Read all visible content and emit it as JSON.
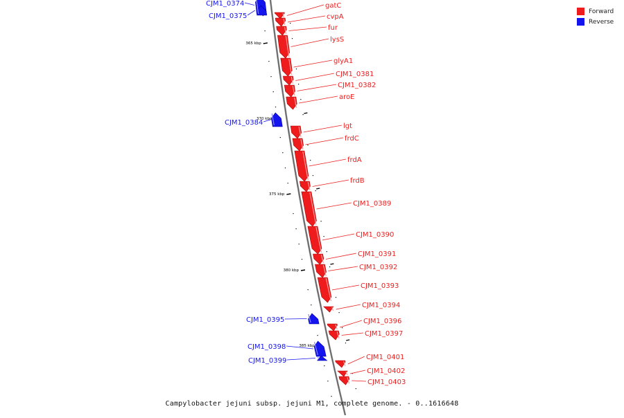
{
  "colors": {
    "forward": "#ee1c1c",
    "reverse": "#1414ee",
    "backbone": "#888888",
    "tick": "#000000"
  },
  "legend": [
    {
      "label": "Forward",
      "color": "#ee1c1c"
    },
    {
      "label": "Reverse",
      "color": "#1414ee"
    }
  ],
  "caption": "Campylobacter jejuni subsp. jejuni M1, complete genome. - 0..1616648",
  "tick_labels": [
    "365 kbp",
    "370 kbp",
    "375 kbp",
    "380 kbp",
    "385 kbp"
  ],
  "genes": [
    {
      "name": "CJM1_0374",
      "strand": "reverse"
    },
    {
      "name": "CJM1_0375",
      "strand": "reverse"
    },
    {
      "name": "gatC",
      "strand": "forward"
    },
    {
      "name": "cvpA",
      "strand": "forward"
    },
    {
      "name": "fur",
      "strand": "forward"
    },
    {
      "name": "lysS",
      "strand": "forward"
    },
    {
      "name": "glyA1",
      "strand": "forward"
    },
    {
      "name": "CJM1_0381",
      "strand": "forward"
    },
    {
      "name": "CJM1_0382",
      "strand": "forward"
    },
    {
      "name": "aroE",
      "strand": "forward"
    },
    {
      "name": "CJM1_0384",
      "strand": "reverse"
    },
    {
      "name": "lgt",
      "strand": "forward"
    },
    {
      "name": "frdC",
      "strand": "forward"
    },
    {
      "name": "frdA",
      "strand": "forward"
    },
    {
      "name": "frdB",
      "strand": "forward"
    },
    {
      "name": "CJM1_0389",
      "strand": "forward"
    },
    {
      "name": "CJM1_0390",
      "strand": "forward"
    },
    {
      "name": "CJM1_0391",
      "strand": "forward"
    },
    {
      "name": "CJM1_0392",
      "strand": "forward"
    },
    {
      "name": "CJM1_0393",
      "strand": "forward"
    },
    {
      "name": "CJM1_0394",
      "strand": "forward"
    },
    {
      "name": "CJM1_0395",
      "strand": "reverse"
    },
    {
      "name": "CJM1_0396",
      "strand": "forward"
    },
    {
      "name": "CJM1_0397",
      "strand": "forward"
    },
    {
      "name": "CJM1_0398",
      "strand": "reverse"
    },
    {
      "name": "CJM1_0399",
      "strand": "reverse"
    },
    {
      "name": "CJM1_0401",
      "strand": "forward"
    },
    {
      "name": "CJM1_0402",
      "strand": "forward"
    },
    {
      "name": "CJM1_0403",
      "strand": "forward"
    }
  ]
}
